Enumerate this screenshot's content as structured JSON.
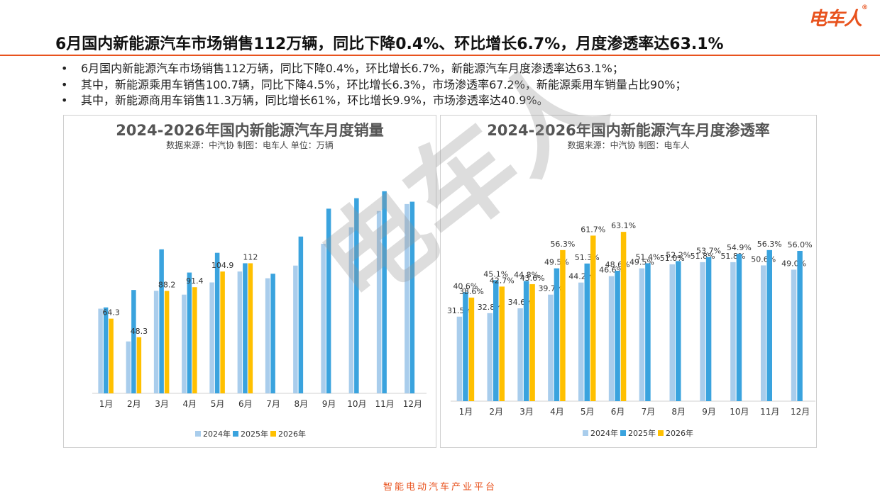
{
  "brand": {
    "logo_text": "电车人",
    "reg_mark": "®",
    "footer": "智能电动汽车产业平台",
    "watermark": "电车人"
  },
  "headline": "6月国内新能源汽车市场销售112万辆，同比下降0.4%、环比增长6.7%，月度渗透率达63.1%",
  "bullets": [
    "6月国内新能源汽车市场销售112万辆，同比下降0.4%，环比增长6.7%，新能源汽车月度渗透率达63.1%；",
    "其中，新能源乘用车销售100.7辆，同比下降4.5%，环比增长6.3%，市场渗透率67.2%，新能源乘用车销量占比90%；",
    "其中，新能源商用车销售11.3万辆，同比增长61%，环比增长9.9%，市场渗透率达40.9%。"
  ],
  "bullet_symbol": "•",
  "colors": {
    "y2024": "#a9cdec",
    "y2025": "#3aa3de",
    "y2026": "#ffc000",
    "accent": "#e8521d"
  },
  "chart_data": [
    {
      "type": "bar",
      "title": "2024-2026年国内新能源汽车月度销量",
      "subtitle": "数据来源：中汽协     制图：电车人     单位：万辆",
      "categories": [
        "1月",
        "2月",
        "3月",
        "4月",
        "5月",
        "6月",
        "7月",
        "8月",
        "9月",
        "10月",
        "11月",
        "12月"
      ],
      "series": [
        {
          "name": "2024年",
          "values": [
            72.9,
            44.7,
            88.3,
            85.0,
            95.5,
            104.9,
            99.1,
            110.0,
            128.8,
            143.0,
            157.0,
            163.0
          ]
        },
        {
          "name": "2025年",
          "values": [
            74.0,
            89.0,
            124.0,
            104.0,
            121.0,
            112.0,
            103.0,
            135.0,
            159.0,
            168.0,
            174.0,
            165.0
          ]
        },
        {
          "name": "2026年",
          "values": [
            64.3,
            48.3,
            88.2,
            91.4,
            104.9,
            112,
            null,
            null,
            null,
            null,
            null,
            null
          ]
        }
      ],
      "data_labels": {
        "2026年": [
          "64.3",
          "48.3",
          "88.2",
          "91.4",
          "104.9",
          "112"
        ]
      },
      "ylim": [
        0,
        180
      ],
      "legend": "bottom"
    },
    {
      "type": "bar",
      "title": "2024-2026年国内新能源汽车月度渗透率",
      "subtitle": "数据来源：中汽协     制图：电车人",
      "categories": [
        "1月",
        "2月",
        "3月",
        "4月",
        "5月",
        "6月",
        "7月",
        "8月",
        "9月",
        "10月",
        "11月",
        "12月"
      ],
      "series": [
        {
          "name": "2024年",
          "values": [
            31.5,
            32.8,
            34.6,
            39.7,
            44.2,
            46.6,
            49.5,
            51.0,
            51.8,
            51.8,
            50.6,
            49.0
          ]
        },
        {
          "name": "2025年",
          "values": [
            40.6,
            45.1,
            44.8,
            49.5,
            51.3,
            48.6,
            51.4,
            52.2,
            53.7,
            54.9,
            56.3,
            56.0
          ]
        },
        {
          "name": "2026年",
          "values": [
            38.6,
            42.7,
            43.6,
            56.3,
            61.7,
            63.1,
            null,
            null,
            null,
            null,
            null,
            null
          ]
        }
      ],
      "ylim": [
        0,
        70
      ],
      "legend": "bottom"
    }
  ]
}
